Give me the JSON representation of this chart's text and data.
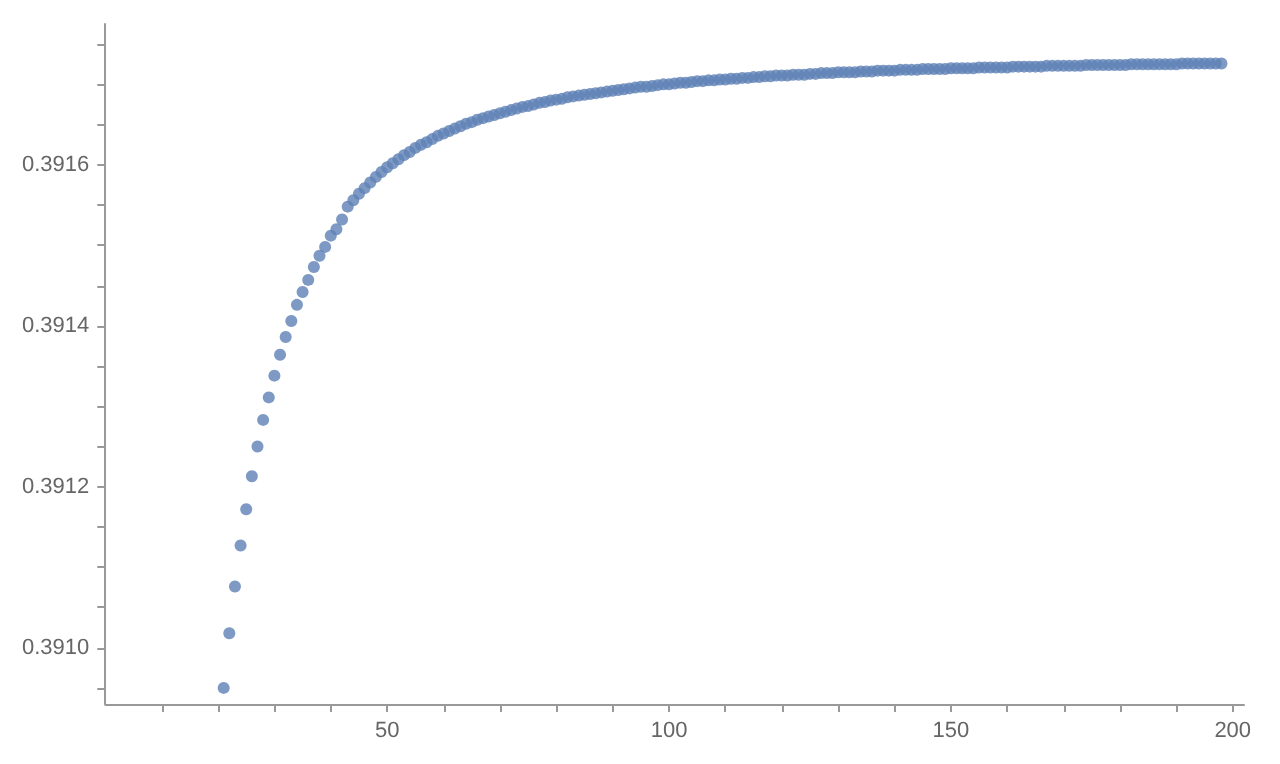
{
  "chart_data": {
    "type": "scatter",
    "color": "#5e81b5",
    "marker": "circle",
    "grid": false,
    "x": [
      21,
      22,
      23,
      24,
      25,
      26,
      27,
      28,
      29,
      30,
      31,
      32,
      33,
      34,
      35,
      36,
      37,
      38,
      39,
      40,
      41,
      42,
      43,
      44,
      45,
      46,
      47,
      48,
      49,
      50,
      51,
      52,
      53,
      54,
      55,
      56,
      57,
      58,
      59,
      60,
      61,
      62,
      63,
      64,
      65,
      66,
      67,
      68,
      69,
      70,
      71,
      72,
      73,
      74,
      75,
      76,
      77,
      78,
      79,
      80,
      81,
      82,
      83,
      84,
      85,
      86,
      87,
      88,
      89,
      90,
      91,
      92,
      93,
      94,
      95,
      96,
      97,
      98,
      99,
      100,
      101,
      102,
      103,
      104,
      105,
      106,
      107,
      108,
      109,
      110,
      111,
      112,
      113,
      114,
      115,
      116,
      117,
      118,
      119,
      120,
      121,
      122,
      123,
      124,
      125,
      126,
      127,
      128,
      129,
      130,
      131,
      132,
      133,
      134,
      135,
      136,
      137,
      138,
      139,
      140,
      141,
      142,
      143,
      144,
      145,
      146,
      147,
      148,
      149,
      150,
      151,
      152,
      153,
      154,
      155,
      156,
      157,
      158,
      159,
      160,
      161,
      162,
      163,
      164,
      165,
      166,
      167,
      168,
      169,
      170,
      171,
      172,
      173,
      174,
      175,
      176,
      177,
      178,
      179,
      180,
      181,
      182,
      183,
      184,
      185,
      186,
      187,
      188,
      189,
      190,
      191,
      192,
      193,
      194,
      195,
      196,
      197,
      198
    ],
    "values": [
      0.39095,
      0.391018,
      0.391076,
      0.391127,
      0.391172,
      0.391213,
      0.39125,
      0.391283,
      0.391311,
      0.391338,
      0.391364,
      0.391386,
      0.391406,
      0.391426,
      0.391442,
      0.391457,
      0.391473,
      0.391487,
      0.391498,
      0.391512,
      0.39152,
      0.391532,
      0.391548,
      0.391556,
      0.391564,
      0.391571,
      0.391578,
      0.391585,
      0.391591,
      0.391597,
      0.391602,
      0.391607,
      0.391612,
      0.391616,
      0.391621,
      0.391625,
      0.391628,
      0.391632,
      0.391636,
      0.391639,
      0.391642,
      0.391645,
      0.391648,
      0.391651,
      0.391653,
      0.391656,
      0.391658,
      0.39166,
      0.391662,
      0.391664,
      0.391666,
      0.391668,
      0.39167,
      0.391672,
      0.391673,
      0.391675,
      0.391677,
      0.391678,
      0.39168,
      0.391681,
      0.391682,
      0.391684,
      0.391685,
      0.391686,
      0.391687,
      0.391688,
      0.391689,
      0.39169,
      0.391691,
      0.391692,
      0.391693,
      0.391694,
      0.391695,
      0.391696,
      0.391697,
      0.391697,
      0.391698,
      0.391699,
      0.3917,
      0.3917,
      0.391701,
      0.391702,
      0.391702,
      0.391703,
      0.391704,
      0.391704,
      0.391705,
      0.391705,
      0.391706,
      0.391706,
      0.391707,
      0.391707,
      0.391708,
      0.391708,
      0.391709,
      0.391709,
      0.39171,
      0.39171,
      0.391711,
      0.391711,
      0.391711,
      0.391712,
      0.391712,
      0.391712,
      0.391713,
      0.391713,
      0.391714,
      0.391714,
      0.391714,
      0.391715,
      0.391715,
      0.391715,
      0.391715,
      0.391716,
      0.391716,
      0.391716,
      0.391717,
      0.391717,
      0.391717,
      0.391717,
      0.391718,
      0.391718,
      0.391718,
      0.391718,
      0.391719,
      0.391719,
      0.391719,
      0.391719,
      0.391719,
      0.39172,
      0.39172,
      0.39172,
      0.39172,
      0.39172,
      0.391721,
      0.391721,
      0.391721,
      0.391721,
      0.391721,
      0.391721,
      0.391722,
      0.391722,
      0.391722,
      0.391722,
      0.391722,
      0.391722,
      0.391723,
      0.391723,
      0.391723,
      0.391723,
      0.391723,
      0.391723,
      0.391723,
      0.391724,
      0.391724,
      0.391724,
      0.391724,
      0.391724,
      0.391724,
      0.391724,
      0.391724,
      0.391725,
      0.391725,
      0.391725,
      0.391725,
      0.391725,
      0.391725,
      0.391725,
      0.391725,
      0.391725,
      0.391726,
      0.391726,
      0.391726,
      0.391726,
      0.391726,
      0.391726,
      0.391726,
      0.391726
    ],
    "xlim": [
      0,
      202
    ],
    "ylim": [
      0.39093,
      0.391775
    ],
    "xticks": [
      {
        "value": 10,
        "label": null
      },
      {
        "value": 20,
        "label": null
      },
      {
        "value": 30,
        "label": null
      },
      {
        "value": 40,
        "label": null
      },
      50,
      {
        "value": 60,
        "label": null
      },
      {
        "value": 70,
        "label": null
      },
      {
        "value": 80,
        "label": null
      },
      {
        "value": 90,
        "label": null
      },
      100,
      {
        "value": 110,
        "label": null
      },
      {
        "value": 120,
        "label": null
      },
      {
        "value": 130,
        "label": null
      },
      {
        "value": 140,
        "label": null
      },
      150,
      {
        "value": 160,
        "label": null
      },
      {
        "value": 170,
        "label": null
      },
      {
        "value": 180,
        "label": null
      },
      {
        "value": 190,
        "label": null
      },
      200
    ],
    "yticks": [
      {
        "value": 0.39095,
        "label": null
      },
      {
        "value": 0.391,
        "label": "0.3910"
      },
      {
        "value": 0.39105,
        "label": null
      },
      {
        "value": 0.3911,
        "label": null
      },
      {
        "value": 0.39115,
        "label": null
      },
      {
        "value": 0.3912,
        "label": "0.3912"
      },
      {
        "value": 0.39125,
        "label": null
      },
      {
        "value": 0.3913,
        "label": null
      },
      {
        "value": 0.39135,
        "label": null
      },
      {
        "value": 0.3914,
        "label": "0.3914"
      },
      {
        "value": 0.39145,
        "label": null
      },
      {
        "value": 0.3915,
        "label": null
      },
      {
        "value": 0.39155,
        "label": null
      },
      {
        "value": 0.3916,
        "label": "0.3916"
      },
      {
        "value": 0.39165,
        "label": null
      },
      {
        "value": 0.3917,
        "label": null
      },
      {
        "value": 0.39175,
        "label": null
      }
    ]
  }
}
